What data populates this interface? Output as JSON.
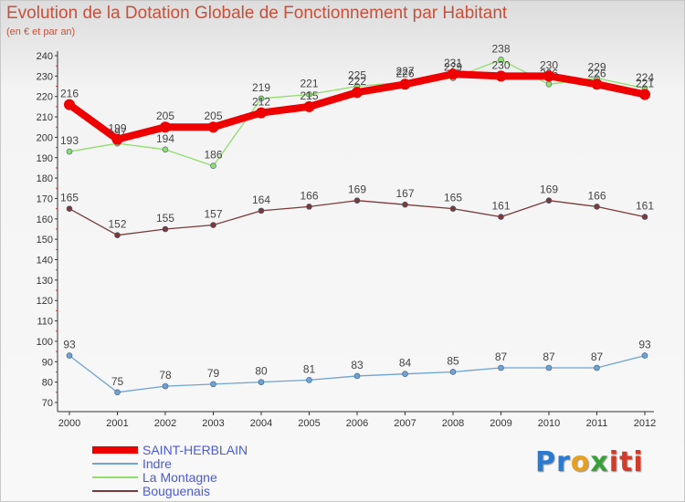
{
  "header": {
    "title": "Evolution de la Dotation Globale de Fonctionnement par Habitant",
    "subtitle": "(en € et par an)"
  },
  "logo": {
    "p1": "Pr",
    "p2": "o",
    "p3": "x",
    "p4": "iti"
  },
  "chart_data": {
    "type": "line",
    "title": "Evolution de la Dotation Globale de Fonctionnement par Habitant",
    "ylabel": "(en € et par an)",
    "xlabel": "",
    "ylim": [
      70,
      240
    ],
    "yticks": [
      70,
      80,
      90,
      100,
      110,
      120,
      130,
      140,
      150,
      160,
      170,
      180,
      190,
      200,
      210,
      220,
      230,
      240
    ],
    "x": [
      "2000",
      "2001",
      "2002",
      "2003",
      "2004",
      "2005",
      "2006",
      "2007",
      "2008",
      "2009",
      "2010",
      "2011",
      "2012"
    ],
    "grid": false,
    "legend": "bottom-left",
    "series": [
      {
        "name": "SAINT-HERBLAIN",
        "color": "#ee0000",
        "values": [
          216,
          199,
          205,
          205,
          212,
          215,
          222,
          226,
          231,
          230,
          230,
          226,
          221
        ]
      },
      {
        "name": "Indre",
        "color": "#6ea3d2",
        "values": [
          93,
          75,
          78,
          79,
          80,
          81,
          83,
          84,
          85,
          87,
          87,
          87,
          93
        ]
      },
      {
        "name": "La Montagne",
        "color": "#90dd6b",
        "values": [
          193,
          197,
          194,
          186,
          219,
          221,
          225,
          227,
          229,
          238,
          226,
          229,
          224
        ]
      },
      {
        "name": "Bouguenais",
        "color": "#7a3a3a",
        "values": [
          165,
          152,
          155,
          157,
          164,
          166,
          169,
          167,
          165,
          161,
          169,
          166,
          161
        ]
      }
    ]
  }
}
